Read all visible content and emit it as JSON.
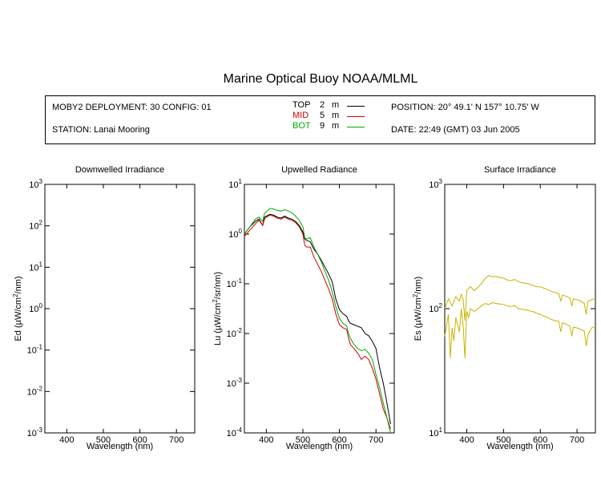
{
  "title": "Marine Optical Buoy NOAA/MLML",
  "info": {
    "deployment": "MOBY2 DEPLOYMENT: 30 CONFIG: 01",
    "station": "STATION: Lanai Mooring",
    "position": "POSITION: 20° 49.1' N   157° 10.75' W",
    "date": "DATE: 22:49 (GMT) 03 Jun 2005"
  },
  "legend": [
    {
      "label": "TOP",
      "depth": "2",
      "unit": "m",
      "color": "#000000"
    },
    {
      "label": "MID",
      "depth": "5",
      "unit": "m",
      "color": "#cc0000"
    },
    {
      "label": "BOT",
      "depth": "9",
      "unit": "m",
      "color": "#00aa00"
    }
  ],
  "chart_data": [
    {
      "type": "line",
      "title": "Downwelled Irradiance",
      "xlabel": "Wavelength (nm)",
      "ylabel": "Ed  (µW/cm²/nm)",
      "xlim": [
        340,
        750
      ],
      "ylim": [
        0.001,
        1000
      ],
      "yscale": "log",
      "xticks": [
        400,
        500,
        600,
        700
      ],
      "yticks": [
        0.001,
        0.01,
        0.1,
        1,
        10,
        100,
        1000
      ],
      "ytick_labels": [
        {
          "base": "10",
          "exp": "-3"
        },
        {
          "base": "10",
          "exp": "-2"
        },
        {
          "base": "10",
          "exp": "-1"
        },
        {
          "base": "10",
          "exp": "0"
        },
        {
          "base": "10",
          "exp": "1"
        },
        {
          "base": "10",
          "exp": "2"
        },
        {
          "base": "10",
          "exp": "3"
        }
      ],
      "series": []
    },
    {
      "type": "line",
      "title": "Upwelled Radiance",
      "xlabel": "Wavelength (nm)",
      "ylabel": "Lu  (µW/cm²/sr/nm)",
      "xlim": [
        340,
        750
      ],
      "ylim": [
        0.0001,
        10
      ],
      "yscale": "log",
      "xticks": [
        400,
        500,
        600,
        700
      ],
      "yticks": [
        0.0001,
        0.001,
        0.01,
        0.1,
        1,
        10
      ],
      "ytick_labels": [
        {
          "base": "10",
          "exp": "-4"
        },
        {
          "base": "10",
          "exp": "-3"
        },
        {
          "base": "10",
          "exp": "-2"
        },
        {
          "base": "10",
          "exp": "-1"
        },
        {
          "base": "10",
          "exp": "0"
        },
        {
          "base": "10",
          "exp": "1"
        }
      ],
      "series": [
        {
          "name": "TOP",
          "color": "#000000",
          "x": [
            340,
            355,
            370,
            380,
            390,
            395,
            400,
            410,
            420,
            430,
            440,
            450,
            460,
            470,
            480,
            490,
            500,
            505,
            510,
            520,
            530,
            540,
            550,
            560,
            570,
            580,
            590,
            600,
            610,
            620,
            625,
            630,
            640,
            650,
            660,
            670,
            680,
            690,
            700,
            710,
            720,
            730,
            740
          ],
          "y": [
            1.0,
            1.4,
            1.8,
            2.0,
            1.5,
            2.2,
            2.3,
            2.5,
            2.4,
            2.2,
            2.1,
            2.3,
            2.1,
            2.0,
            1.8,
            1.5,
            1.1,
            0.8,
            0.75,
            0.7,
            0.5,
            0.4,
            0.3,
            0.22,
            0.16,
            0.11,
            0.05,
            0.03,
            0.025,
            0.022,
            0.018,
            0.016,
            0.015,
            0.014,
            0.013,
            0.01,
            0.009,
            0.007,
            0.005,
            0.002,
            0.001,
            0.0004,
            0.00015
          ]
        },
        {
          "name": "MID",
          "color": "#cc0000",
          "x": [
            340,
            355,
            370,
            380,
            390,
            395,
            400,
            410,
            420,
            430,
            440,
            450,
            460,
            470,
            480,
            490,
            500,
            505,
            510,
            520,
            530,
            540,
            550,
            560,
            570,
            580,
            590,
            600,
            610,
            620,
            625,
            630,
            640,
            650,
            660,
            670,
            680,
            690,
            700,
            710,
            720,
            730,
            740
          ],
          "y": [
            0.9,
            1.2,
            1.6,
            1.9,
            1.5,
            2.0,
            2.2,
            2.4,
            2.3,
            2.1,
            2.0,
            2.2,
            2.0,
            1.9,
            1.7,
            1.4,
            1.0,
            0.6,
            0.55,
            0.55,
            0.35,
            0.25,
            0.18,
            0.12,
            0.08,
            0.05,
            0.025,
            0.015,
            0.013,
            0.012,
            0.008,
            0.006,
            0.005,
            0.004,
            0.003,
            0.0035,
            0.003,
            0.002,
            0.0012,
            0.0006,
            0.0003,
            0.0002,
            0.00012
          ]
        },
        {
          "name": "BOT",
          "color": "#00aa00",
          "x": [
            340,
            355,
            370,
            380,
            390,
            395,
            400,
            410,
            420,
            430,
            440,
            450,
            460,
            470,
            480,
            490,
            500,
            505,
            510,
            520,
            530,
            540,
            550,
            560,
            570,
            580,
            590,
            600,
            610,
            620,
            625,
            630,
            640,
            650,
            660,
            670,
            680,
            690,
            700,
            710,
            720,
            730,
            740
          ],
          "y": [
            1.0,
            1.4,
            2.0,
            2.2,
            1.8,
            2.6,
            2.8,
            3.3,
            3.2,
            3.0,
            2.9,
            3.1,
            2.9,
            2.7,
            2.3,
            1.9,
            1.4,
            0.85,
            0.8,
            0.85,
            0.55,
            0.4,
            0.28,
            0.18,
            0.12,
            0.07,
            0.035,
            0.02,
            0.016,
            0.014,
            0.01,
            0.008,
            0.006,
            0.005,
            0.0045,
            0.0048,
            0.004,
            0.003,
            0.0015,
            0.0008,
            0.0004,
            0.0002,
            0.0001
          ]
        }
      ]
    },
    {
      "type": "line",
      "title": "Surface Irradiance",
      "xlabel": "Wavelength (nm)",
      "ylabel": "Es  (µW/cm²/nm)",
      "xlim": [
        340,
        750
      ],
      "ylim": [
        10,
        1000
      ],
      "yscale": "log",
      "xticks": [
        400,
        500,
        600,
        700
      ],
      "yticks": [
        10,
        100,
        1000
      ],
      "ytick_labels": [
        {
          "base": "10",
          "exp": "1"
        },
        {
          "base": "10",
          "exp": "2"
        },
        {
          "base": "10",
          "exp": "3"
        }
      ],
      "series": [
        {
          "name": "",
          "color": "#c8b400",
          "x": [
            340,
            350,
            360,
            370,
            380,
            385,
            390,
            395,
            400,
            405,
            410,
            420,
            430,
            440,
            450,
            460,
            470,
            480,
            490,
            500,
            510,
            520,
            530,
            540,
            550,
            560,
            570,
            580,
            590,
            600,
            610,
            620,
            630,
            640,
            650,
            656,
            660,
            670,
            680,
            686,
            690,
            700,
            710,
            720,
            725,
            730,
            740,
            750
          ],
          "y": [
            100,
            120,
            105,
            125,
            115,
            130,
            120,
            80,
            140,
            145,
            150,
            140,
            148,
            160,
            175,
            185,
            180,
            182,
            178,
            176,
            170,
            168,
            172,
            165,
            162,
            160,
            158,
            154,
            150,
            150,
            146,
            142,
            138,
            135,
            132,
            115,
            128,
            126,
            122,
            105,
            120,
            118,
            115,
            110,
            90,
            115,
            118,
            120
          ]
        },
        {
          "name": "",
          "color": "#c8b400",
          "x": [
            340,
            350,
            355,
            360,
            365,
            370,
            380,
            385,
            390,
            395,
            400,
            405,
            410,
            420,
            430,
            440,
            450,
            460,
            470,
            480,
            490,
            500,
            510,
            520,
            530,
            540,
            550,
            560,
            570,
            580,
            590,
            600,
            610,
            620,
            630,
            640,
            650,
            656,
            660,
            670,
            680,
            686,
            690,
            700,
            710,
            720,
            725,
            730,
            740,
            750
          ],
          "y": [
            60,
            90,
            40,
            70,
            55,
            85,
            65,
            100,
            75,
            40,
            95,
            85,
            100,
            95,
            100,
            105,
            110,
            108,
            112,
            110,
            109,
            108,
            105,
            104,
            106,
            100,
            99,
            98,
            96,
            95,
            92,
            90,
            87,
            85,
            82,
            80,
            79,
            65,
            77,
            75,
            73,
            60,
            71,
            70,
            68,
            66,
            50,
            62,
            70,
            72
          ]
        }
      ]
    }
  ]
}
